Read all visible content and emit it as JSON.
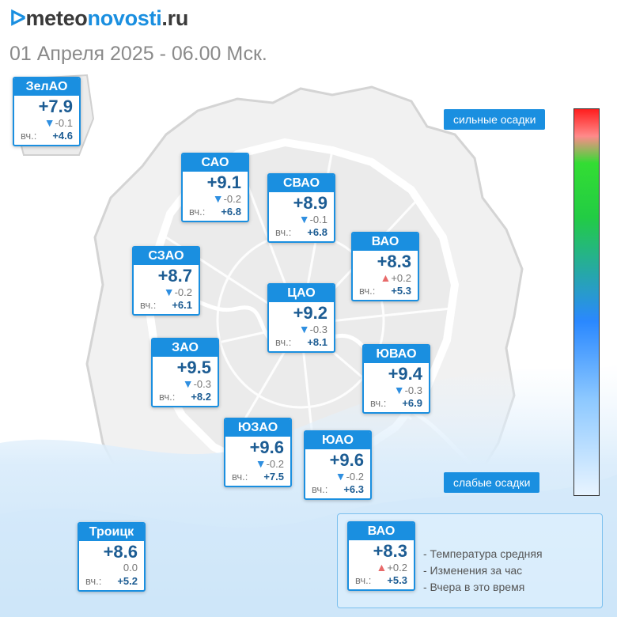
{
  "header": {
    "logo_mark": "ᐅ",
    "logo_part1": "meteo",
    "logo_part2": "novosti",
    "logo_part3": ".ru",
    "subtitle": "01 Апреля 2025 - 06.00 Мск."
  },
  "labels": {
    "yesterday": "вч.:"
  },
  "scale": {
    "top_label": "сильные осадки",
    "bottom_label": "слабые осадки"
  },
  "districts": [
    {
      "id": "zelao",
      "name": "ЗелАО",
      "temp": "+7.9",
      "trend": "down",
      "delta": "-0.1",
      "yesterday": "+4.6"
    },
    {
      "id": "sao",
      "name": "САО",
      "temp": "+9.1",
      "trend": "down",
      "delta": "-0.2",
      "yesterday": "+6.8"
    },
    {
      "id": "svao",
      "name": "СВАО",
      "temp": "+8.9",
      "trend": "down",
      "delta": "-0.1",
      "yesterday": "+6.8"
    },
    {
      "id": "vao",
      "name": "ВАО",
      "temp": "+8.3",
      "trend": "up",
      "delta": "+0.2",
      "yesterday": "+5.3"
    },
    {
      "id": "szao",
      "name": "СЗАО",
      "temp": "+8.7",
      "trend": "down",
      "delta": "-0.2",
      "yesterday": "+6.1"
    },
    {
      "id": "cao",
      "name": "ЦАО",
      "temp": "+9.2",
      "trend": "down",
      "delta": "-0.3",
      "yesterday": "+8.1"
    },
    {
      "id": "zao",
      "name": "ЗАО",
      "temp": "+9.5",
      "trend": "down",
      "delta": "-0.3",
      "yesterday": "+8.2"
    },
    {
      "id": "yuvao",
      "name": "ЮВАО",
      "temp": "+9.4",
      "trend": "down",
      "delta": "-0.3",
      "yesterday": "+6.9"
    },
    {
      "id": "yuzao",
      "name": "ЮЗАО",
      "temp": "+9.6",
      "trend": "down",
      "delta": "-0.2",
      "yesterday": "+7.5"
    },
    {
      "id": "yuao",
      "name": "ЮАО",
      "temp": "+9.6",
      "trend": "down",
      "delta": "-0.2",
      "yesterday": "+6.3"
    },
    {
      "id": "troick",
      "name": "Троицк",
      "temp": "+8.6",
      "trend": "none",
      "delta": "0.0",
      "yesterday": "+5.2"
    }
  ],
  "legend": {
    "sample": {
      "name": "ВАО",
      "temp": "+8.3",
      "trend": "up",
      "delta": "+0.2",
      "yesterday": "+5.3"
    },
    "items": [
      "- Температура средняя",
      "- Изменения за час",
      "- Вчера в это время"
    ]
  },
  "colors": {
    "accent": "#1a8fe0",
    "temp_text": "#1c5c93",
    "trend_down": "#2f8fe0",
    "trend_up": "#e86a6a"
  }
}
